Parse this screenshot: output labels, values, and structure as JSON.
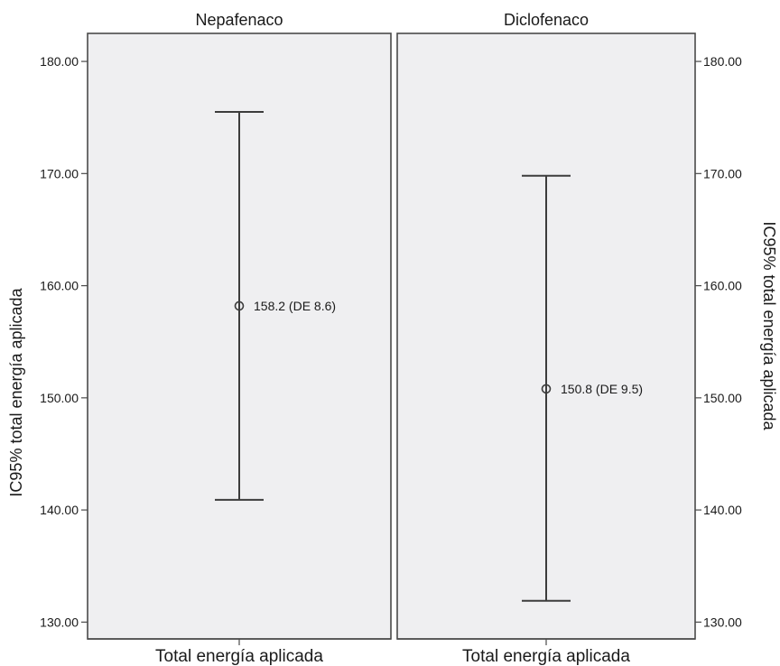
{
  "chart_data": {
    "type": "errorbar",
    "ylabel_left": "IC95% total energía aplicada",
    "ylabel_right": "IC95% total energía aplicada",
    "xlabel": "Total energía aplicada",
    "ylim": [
      128.5,
      182.5
    ],
    "yticks": [
      130,
      140,
      150,
      160,
      170,
      180
    ],
    "ytick_labels": [
      "130.00",
      "140.00",
      "150.00",
      "160.00",
      "170.00",
      "180.00"
    ],
    "grid": false,
    "panels": [
      {
        "title": "Nepafenaco",
        "xlabel": "Total energía aplicada",
        "mean": 158.2,
        "ci_lower": 140.9,
        "ci_upper": 175.5,
        "label": "158.2 (DE 8.6)"
      },
      {
        "title": "Diclofenaco",
        "xlabel": "Total energía aplicada",
        "mean": 150.8,
        "ci_lower": 131.9,
        "ci_upper": 169.8,
        "label": "150.8 (DE 9.5)"
      }
    ]
  }
}
